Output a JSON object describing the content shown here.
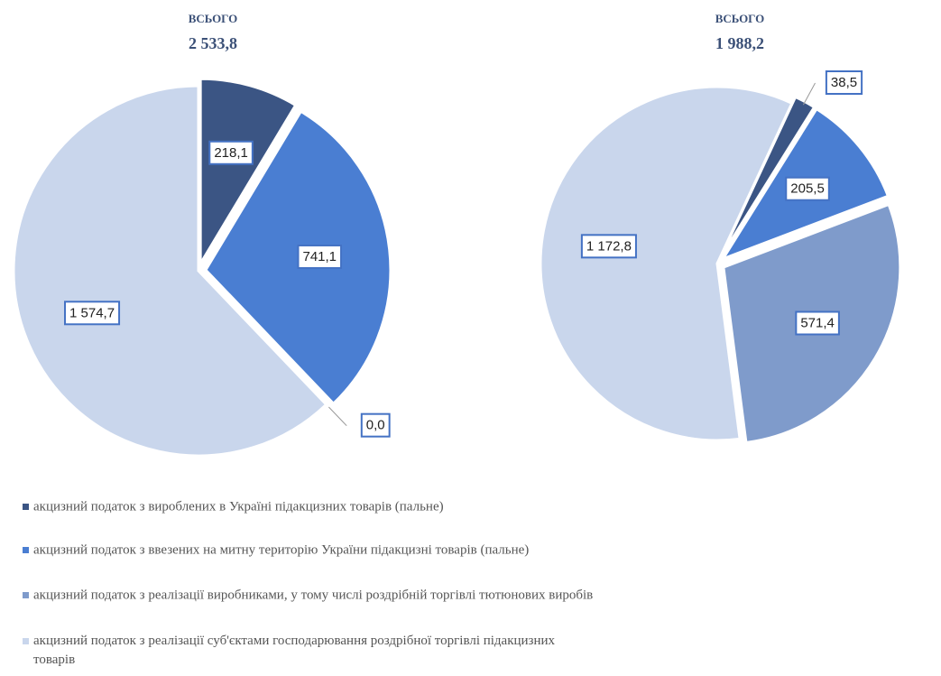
{
  "chart_data": [
    {
      "type": "pie",
      "title": "ВСЬОГО",
      "subtitle": "2 533,8",
      "categories": [
        "акцизний податок з вироблених в Україні підакцизних товарів (пальне)",
        "акцизний податок з ввезених на митну територію України підакцизні товарів (пальне)",
        "акцизний податок з реалізації виробниками, у тому числі роздрібній торгівлі тютюнових виробів",
        "акцизний податок з реалізації суб'єктами господарювання роздрібної торгівлі підакцизних товарів"
      ],
      "values": [
        218.1,
        741.1,
        0.0,
        1574.7
      ],
      "value_labels": [
        "218,1",
        "741,1",
        "0,0",
        "1 574,7"
      ],
      "colors": [
        "#3b5584",
        "#4a7ed2",
        "#7f9bcb",
        "#c9d6ec"
      ]
    },
    {
      "type": "pie",
      "title": "ВСЬОГО",
      "subtitle": "1 988,2",
      "categories": [
        "акцизний податок з вироблених в Україні підакцизних товарів (пальне)",
        "акцизний податок з ввезених на митну територію України підакцизні товарів (пальне)",
        "акцизний податок з реалізації виробниками, у тому числі роздрібній торгівлі тютюнових виробів",
        "акцизний податок з реалізації суб'єктами господарювання роздрібної торгівлі підакцизних товарів"
      ],
      "values": [
        38.5,
        205.5,
        571.4,
        1172.8
      ],
      "value_labels": [
        "38,5",
        "205,5",
        "571,4",
        "1 172,8"
      ],
      "colors": [
        "#3b5584",
        "#4a7ed2",
        "#7f9bcb",
        "#c9d6ec"
      ]
    }
  ]
}
